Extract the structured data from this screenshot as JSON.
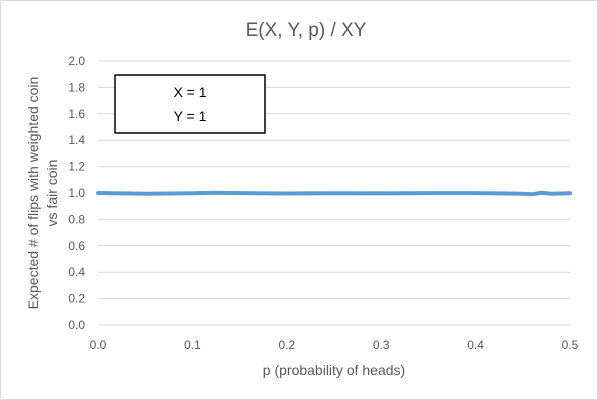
{
  "chart_data": {
    "type": "line",
    "title": "E(X, Y, p) / XY",
    "xlabel": "p (probability of heads)",
    "ylabel_line1": "Expected # of flips with weighted coin",
    "ylabel_line2": "vs fair coin",
    "xlim": [
      0,
      0.5
    ],
    "ylim": [
      0,
      2.0
    ],
    "grid": true,
    "legend": "none",
    "x_ticks": [
      "0.0",
      "0.1",
      "0.2",
      "0.3",
      "0.4",
      "0.5"
    ],
    "y_ticks": [
      "0.0",
      "0.2",
      "0.4",
      "0.6",
      "0.8",
      "1.0",
      "1.2",
      "1.4",
      "1.6",
      "1.8",
      "2.0"
    ],
    "annotation": {
      "line1": "X = 1",
      "line2": "Y = 1"
    },
    "series": [
      {
        "color": "#5b9bd5",
        "x": [
          0.0,
          0.05,
          0.1,
          0.125,
          0.15,
          0.2,
          0.25,
          0.3,
          0.35,
          0.4,
          0.45,
          0.46,
          0.47,
          0.48,
          0.5
        ],
        "y": [
          1.0,
          0.995,
          0.998,
          1.002,
          0.999,
          0.996,
          0.998,
          0.997,
          0.999,
          0.999,
          0.995,
          0.99,
          1.002,
          0.995,
          0.998
        ]
      }
    ]
  }
}
